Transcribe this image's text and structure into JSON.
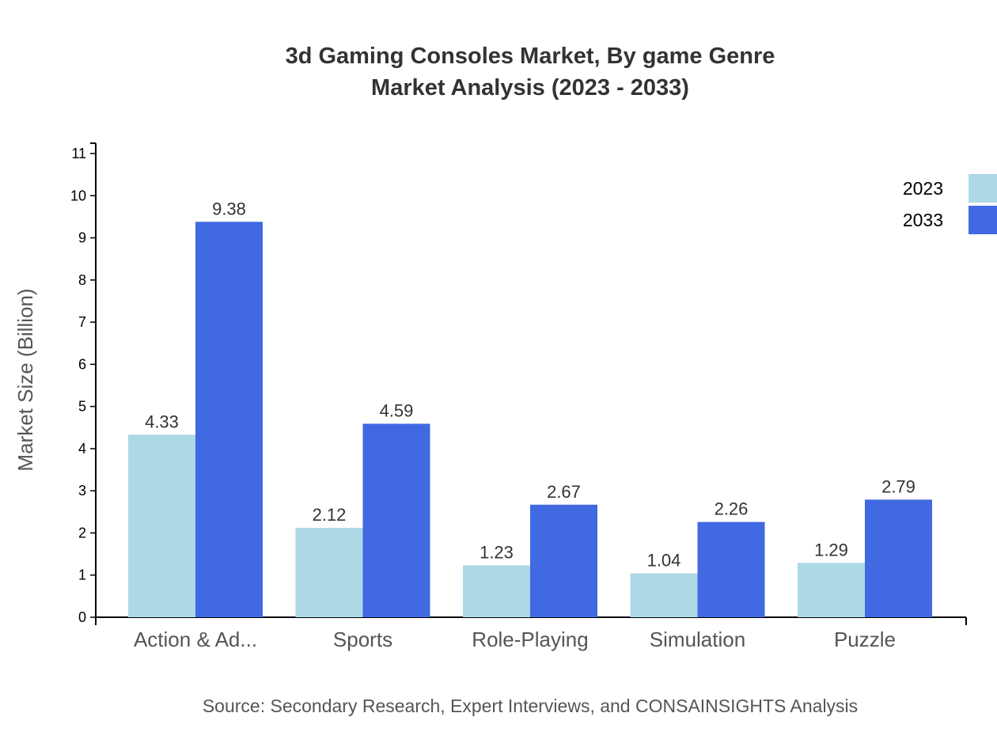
{
  "chart_data": {
    "type": "bar",
    "title_line1": "3d Gaming Consoles Market, By game Genre",
    "title_line2": "Market Analysis (2023 - 2033)",
    "ylabel": "Market Size (Billion)",
    "xlabel": "",
    "ylim": [
      0,
      11
    ],
    "yticks": [
      0,
      1,
      2,
      3,
      4,
      5,
      6,
      7,
      8,
      9,
      10,
      11
    ],
    "categories": [
      "Action & Ad...",
      "Sports",
      "Role-Playing",
      "Simulation",
      "Puzzle"
    ],
    "series": [
      {
        "name": "2023",
        "color": "#add8e6",
        "values": [
          4.33,
          2.12,
          1.23,
          1.04,
          1.29
        ]
      },
      {
        "name": "2033",
        "color": "#4169e1",
        "values": [
          9.38,
          4.59,
          2.67,
          2.26,
          2.79
        ]
      }
    ],
    "legend_position": "top-right",
    "grid": false,
    "source": "Source: Secondary Research, Expert Interviews, and CONSAINSIGHTS Analysis"
  }
}
